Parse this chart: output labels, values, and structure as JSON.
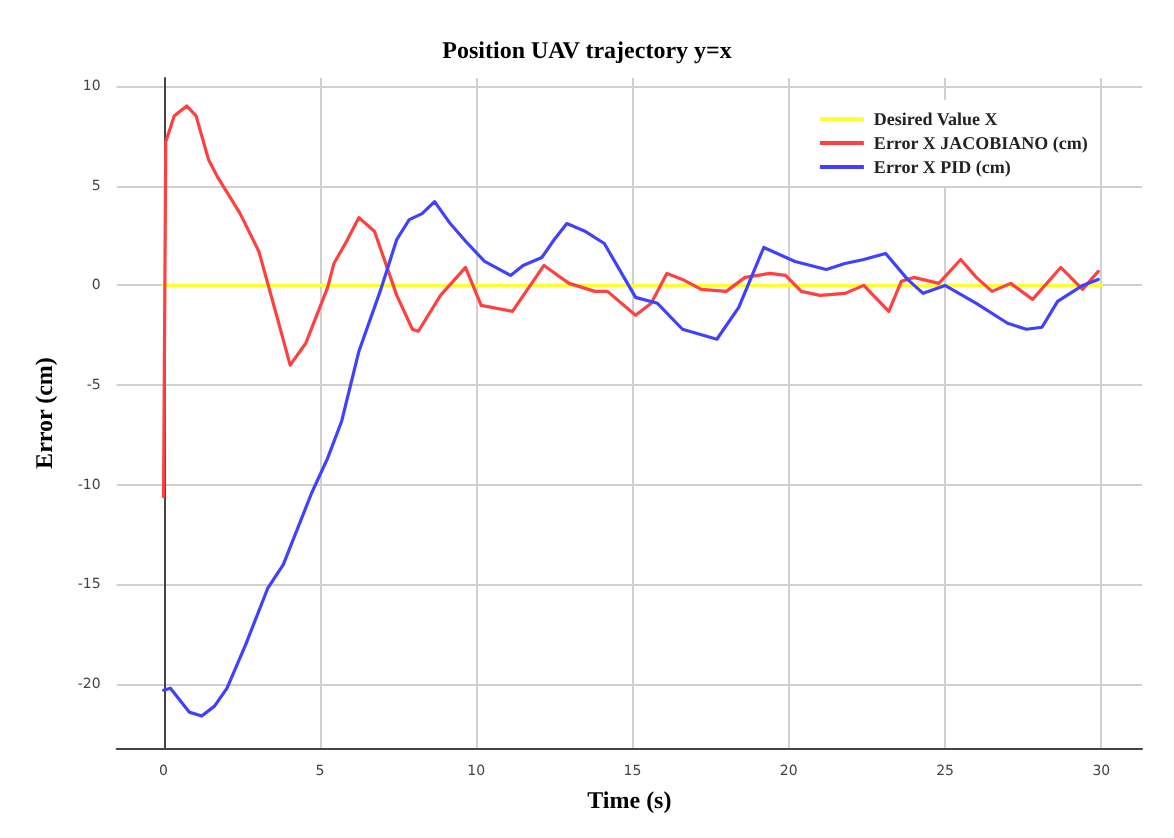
{
  "chart_data": {
    "type": "line",
    "title": "Position UAV trajectory y=x",
    "xlabel": "Time (s)",
    "ylabel": "Error (cm)",
    "xlim": [
      -1.5,
      31.3
    ],
    "ylim": [
      -23.2,
      10.4
    ],
    "xticks": [
      0,
      5,
      10,
      15,
      20,
      25,
      30
    ],
    "yticks": [
      -20,
      -15,
      -10,
      -5,
      0,
      5,
      10
    ],
    "grid": true,
    "legend": "top right",
    "marker": "none",
    "line_style": "solid",
    "series": [
      {
        "name": "Desired Value X",
        "color": "#ffff33",
        "x": [
          0,
          30
        ],
        "values": [
          0,
          0
        ]
      },
      {
        "name": "Error X JACOBIANO (cm)",
        "color": "#ff4040",
        "x": [
          0,
          0.07,
          0.34,
          0.74,
          1.04,
          1.44,
          1.74,
          2.45,
          3.05,
          3.65,
          4.05,
          4.55,
          5.25,
          5.45,
          5.85,
          6.25,
          6.75,
          7.46,
          7.96,
          8.15,
          8.86,
          9.66,
          10.16,
          11.16,
          12.17,
          12.97,
          13.8,
          14.2,
          15.1,
          15.6,
          16.1,
          16.6,
          17.2,
          18.0,
          18.6,
          19.4,
          19.9,
          20.4,
          21.0,
          21.8,
          22.4,
          23.2,
          23.6,
          24.0,
          24.8,
          25.5,
          26.0,
          26.5,
          27.1,
          27.8,
          28.7,
          29.4,
          29.9
        ],
        "values": [
          -10.6,
          7.2,
          8.5,
          9.0,
          8.5,
          6.3,
          5.4,
          3.6,
          1.7,
          -1.7,
          -4.0,
          -2.9,
          -0.1,
          1.1,
          2.2,
          3.4,
          2.7,
          -0.5,
          -2.2,
          -2.3,
          -0.5,
          0.9,
          -1.0,
          -1.3,
          1.0,
          0.1,
          -0.3,
          -0.3,
          -1.5,
          -0.9,
          0.6,
          0.3,
          -0.2,
          -0.3,
          0.4,
          0.6,
          0.5,
          -0.3,
          -0.5,
          -0.4,
          0,
          -1.3,
          0.2,
          0.4,
          0.1,
          1.3,
          0.4,
          -0.3,
          0.1,
          -0.7,
          0.9,
          -0.2,
          0.7
        ]
      },
      {
        "name": "Error X PID (cm)",
        "color": "#4040ff",
        "x": [
          0,
          0.22,
          0.82,
          1.22,
          1.63,
          2.03,
          2.63,
          3.33,
          3.83,
          4.74,
          5.24,
          5.7,
          6.25,
          6.95,
          7.46,
          7.86,
          8.27,
          8.67,
          9.17,
          9.67,
          10.27,
          11.1,
          11.5,
          12.1,
          12.5,
          12.9,
          13.5,
          14.1,
          15.1,
          15.8,
          16.6,
          17.7,
          18.4,
          19.2,
          20.2,
          21.2,
          21.8,
          22.4,
          23.1,
          23.8,
          24.3,
          25.0,
          26.0,
          27.0,
          27.6,
          28.1,
          28.6,
          29.4,
          29.9
        ],
        "values": [
          -20.3,
          -20.2,
          -21.4,
          -21.6,
          -21.1,
          -20.2,
          -18.0,
          -15.2,
          -14.0,
          -10.4,
          -8.7,
          -6.8,
          -3.3,
          -0.2,
          2.3,
          3.3,
          3.6,
          4.2,
          3.1,
          2.2,
          1.2,
          0.5,
          1.0,
          1.4,
          2.3,
          3.1,
          2.7,
          2.1,
          -0.6,
          -0.9,
          -2.2,
          -2.7,
          -1.1,
          1.9,
          1.2,
          0.8,
          1.1,
          1.3,
          1.6,
          0.3,
          -0.4,
          0,
          -0.9,
          -1.9,
          -2.2,
          -2.1,
          -0.8,
          0,
          0.3
        ]
      }
    ]
  }
}
